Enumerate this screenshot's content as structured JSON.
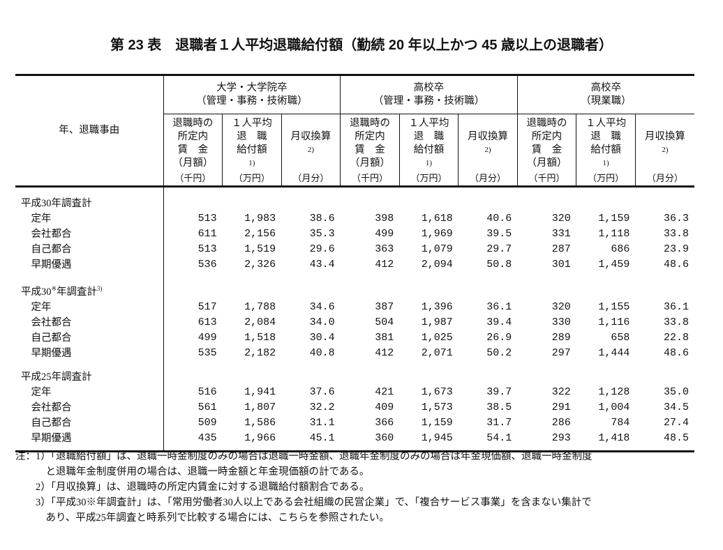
{
  "title": "第 23 表　退職者１人平均退職給付額（勤続 20 年以上かつ 45 歳以上の退職者）",
  "header": {
    "row_label": "年、退職事由",
    "groups": [
      {
        "line1": "大学・大学院卒",
        "line2": "（管理・事務・技術職）"
      },
      {
        "line1": "高校卒",
        "line2": "（管理・事務・技術職）"
      },
      {
        "line1": "高校卒",
        "line2": "（現業職）"
      }
    ],
    "columns": [
      {
        "lines": [
          "退職時の",
          "所定内",
          "賃　金",
          "（月額）"
        ],
        "note": "",
        "unit": "（千円）"
      },
      {
        "lines": [
          "１人平均",
          "退　職",
          "給付額"
        ],
        "note": "1)",
        "unit": "（万円）"
      },
      {
        "lines": [
          "月収換算"
        ],
        "note": "2)",
        "unit": "（月分）"
      }
    ]
  },
  "sections": [
    {
      "label": "平成30年調査計",
      "sup": "",
      "rows": [
        {
          "label": "定年",
          "values": [
            "513",
            "1,983",
            "38.6",
            "398",
            "1,618",
            "40.6",
            "320",
            "1,159",
            "36.3"
          ]
        },
        {
          "label": "会社都合",
          "values": [
            "611",
            "2,156",
            "35.3",
            "499",
            "1,969",
            "39.5",
            "331",
            "1,118",
            "33.8"
          ]
        },
        {
          "label": "自己都合",
          "values": [
            "513",
            "1,519",
            "29.6",
            "363",
            "1,079",
            "29.7",
            "287",
            "686",
            "23.9"
          ]
        },
        {
          "label": "早期優遇",
          "values": [
            "536",
            "2,326",
            "43.4",
            "412",
            "2,094",
            "50.8",
            "301",
            "1,459",
            "48.6"
          ]
        }
      ]
    },
    {
      "label": "平成30",
      "mark": "※",
      "label_rest": "年調査計",
      "sup": "3)",
      "rows": [
        {
          "label": "定年",
          "values": [
            "517",
            "1,788",
            "34.6",
            "387",
            "1,396",
            "36.1",
            "320",
            "1,155",
            "36.1"
          ]
        },
        {
          "label": "会社都合",
          "values": [
            "613",
            "2,084",
            "34.0",
            "504",
            "1,987",
            "39.4",
            "330",
            "1,116",
            "33.8"
          ]
        },
        {
          "label": "自己都合",
          "values": [
            "499",
            "1,518",
            "30.4",
            "381",
            "1,025",
            "26.9",
            "289",
            "658",
            "22.8"
          ]
        },
        {
          "label": "早期優遇",
          "values": [
            "535",
            "2,182",
            "40.8",
            "412",
            "2,071",
            "50.2",
            "297",
            "1,444",
            "48.6"
          ]
        }
      ]
    },
    {
      "label": "平成25年調査計",
      "sup": "",
      "rows": [
        {
          "label": "定年",
          "values": [
            "516",
            "1,941",
            "37.6",
            "421",
            "1,673",
            "39.7",
            "322",
            "1,128",
            "35.0"
          ]
        },
        {
          "label": "会社都合",
          "values": [
            "561",
            "1,807",
            "32.2",
            "409",
            "1,573",
            "38.5",
            "291",
            "1,004",
            "34.5"
          ]
        },
        {
          "label": "自己都合",
          "values": [
            "509",
            "1,586",
            "31.1",
            "366",
            "1,159",
            "31.7",
            "286",
            "784",
            "27.4"
          ]
        },
        {
          "label": "早期優遇",
          "values": [
            "435",
            "1,966",
            "45.1",
            "360",
            "1,945",
            "54.1",
            "293",
            "1,418",
            "48.5"
          ]
        }
      ]
    }
  ],
  "notes": [
    "注：1）「退職給付額」は、退職一時金制度のみの場合は退職一時金額、退職年金制度のみの場合は年金現価額、退職一時金制度",
    "　　　と退職年金制度併用の場合は、退職一時金額と年金現価額の計である。",
    "　　2）「月収換算」は、退職時の所定内賃金に対する退職給付額割合である。",
    "　　3）「平成30※年調査計」は、「常用労働者30人以上である会社組織の民営企業」で、「複合サービス事業」を含まない集計で",
    "　　　あり、平成25年調査と時系列で比較する場合には、こちらを参照されたい。"
  ]
}
